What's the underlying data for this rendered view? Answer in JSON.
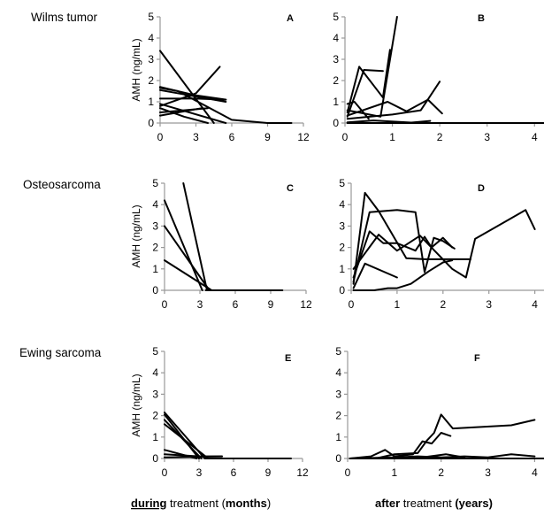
{
  "rows": [
    {
      "title": "Wilms tumor",
      "ylabel": "AMH (ng/mL)"
    },
    {
      "title": "Osteosarcoma",
      "ylabel": "AMH (ng/mL)"
    },
    {
      "title": "Ewing sarcoma",
      "ylabel": "AMH (ng/mL)"
    }
  ],
  "xlabels": {
    "during": {
      "underlined": "during",
      "plain1": " treatment (",
      "bold": "months",
      "plain2": ")"
    },
    "after": {
      "bold1": "after",
      "plain": " treatment ",
      "bold2": "(years)"
    }
  },
  "chart_data": [
    {
      "panel": "A",
      "type": "line",
      "xlim": [
        0,
        12
      ],
      "ylim": [
        0,
        5
      ],
      "xticks": [
        0,
        3,
        6,
        9,
        12
      ],
      "yticks": [
        0,
        1,
        2,
        3,
        4,
        5
      ],
      "series": [
        {
          "x": [
            0,
            4.5
          ],
          "y": [
            3.4,
            0
          ]
        },
        {
          "x": [
            0,
            1.5,
            6,
            9,
            11
          ],
          "y": [
            1.65,
            1.5,
            0.15,
            0,
            0
          ]
        },
        {
          "x": [
            0,
            3,
            5.5
          ],
          "y": [
            1.7,
            1.3,
            1.1
          ]
        },
        {
          "x": [
            0,
            5.5
          ],
          "y": [
            1.55,
            1.0
          ]
        },
        {
          "x": [
            0,
            3,
            5.5
          ],
          "y": [
            1.15,
            1.15,
            1.1
          ]
        },
        {
          "x": [
            0,
            5.5
          ],
          "y": [
            0.9,
            0
          ]
        },
        {
          "x": [
            0,
            3.5
          ],
          "y": [
            0.35,
            0.7
          ]
        },
        {
          "x": [
            0,
            2,
            4
          ],
          "y": [
            0.7,
            0.3,
            0
          ]
        },
        {
          "x": [
            0,
            3,
            5
          ],
          "y": [
            0.8,
            1.4,
            2.65
          ]
        },
        {
          "x": [
            0,
            4
          ],
          "y": [
            0.5,
            0.7
          ]
        }
      ]
    },
    {
      "panel": "B",
      "type": "line",
      "xlim": [
        0,
        4.2
      ],
      "ylim": [
        0,
        5
      ],
      "xticks": [
        0,
        1,
        2,
        3,
        4
      ],
      "yticks": [
        0,
        1,
        2,
        3,
        4,
        5
      ],
      "series": [
        {
          "x": [
            0.05,
            0.4,
            0.8
          ],
          "y": [
            0.3,
            2.5,
            2.45
          ]
        },
        {
          "x": [
            0.05,
            0.3,
            0.8,
            0.95
          ],
          "y": [
            0.5,
            2.65,
            1.2,
            3.45
          ]
        },
        {
          "x": [
            0.05,
            0.75,
            1.1
          ],
          "y": [
            0.6,
            0.3,
            5.0
          ]
        },
        {
          "x": [
            0.05,
            0.9,
            1.3,
            1.75,
            2.05
          ],
          "y": [
            0.35,
            1.0,
            0.55,
            1.1,
            0.45
          ]
        },
        {
          "x": [
            0.05,
            1.0,
            1.6,
            2.0
          ],
          "y": [
            0.2,
            0.4,
            0.6,
            1.95
          ]
        },
        {
          "x": [
            0.05,
            0.2,
            0.5
          ],
          "y": [
            0.9,
            1.0,
            0.2
          ]
        },
        {
          "x": [
            0.05,
            0.6,
            1.4,
            1.8
          ],
          "y": [
            0.03,
            0.12,
            0.02,
            0.1
          ]
        },
        {
          "x": [
            0.05,
            4.2
          ],
          "y": [
            0,
            0
          ]
        }
      ]
    },
    {
      "panel": "C",
      "type": "line",
      "xlim": [
        0,
        12
      ],
      "ylim": [
        0,
        5
      ],
      "xticks": [
        0,
        3,
        6,
        9,
        12
      ],
      "yticks": [
        0,
        1,
        2,
        3,
        4,
        5
      ],
      "series": [
        {
          "x": [
            1.6,
            3.6
          ],
          "y": [
            5.0,
            0
          ]
        },
        {
          "x": [
            0,
            3.2
          ],
          "y": [
            4.2,
            0
          ]
        },
        {
          "x": [
            0,
            3.8
          ],
          "y": [
            3.0,
            0
          ]
        },
        {
          "x": [
            0,
            4.0
          ],
          "y": [
            1.4,
            0
          ]
        },
        {
          "x": [
            3.5,
            10
          ],
          "y": [
            0,
            0
          ]
        }
      ]
    },
    {
      "panel": "D",
      "type": "line",
      "xlim": [
        0,
        4.2
      ],
      "ylim": [
        0,
        5
      ],
      "xticks": [
        0,
        1,
        2,
        3,
        4
      ],
      "yticks": [
        0,
        1,
        2,
        3,
        4,
        5
      ],
      "series": [
        {
          "x": [
            0.05,
            0.3,
            0.6,
            1.2,
            1.6,
            2.6
          ],
          "y": [
            0.3,
            4.55,
            3.7,
            1.5,
            1.45,
            1.45
          ]
        },
        {
          "x": [
            0.05,
            0.4,
            1.0,
            1.4,
            1.6,
            1.8,
            2.0,
            2.25
          ],
          "y": [
            0.4,
            3.65,
            3.75,
            3.65,
            0.85,
            2.45,
            2.3,
            1.95
          ]
        },
        {
          "x": [
            0.05,
            0.4,
            0.7,
            1.0,
            1.4,
            1.6,
            1.75,
            2.0,
            2.2
          ],
          "y": [
            0.6,
            2.75,
            2.2,
            2.2,
            1.85,
            2.5,
            2.0,
            2.45,
            2.0
          ]
        },
        {
          "x": [
            0.05,
            0.6,
            1.0,
            1.5,
            2.2,
            2.5,
            2.7,
            3.8,
            4.0
          ],
          "y": [
            1.0,
            2.6,
            1.85,
            2.55,
            1.0,
            0.6,
            2.4,
            3.75,
            2.85
          ]
        },
        {
          "x": [
            0.05,
            0.3,
            1.0
          ],
          "y": [
            0.1,
            1.25,
            0.6
          ]
        },
        {
          "x": [
            0.05,
            0.5,
            0.8,
            1.0,
            1.3,
            1.7,
            2.0,
            2.2
          ],
          "y": [
            0,
            0,
            0.1,
            0.1,
            0.3,
            0.9,
            1.3,
            1.4
          ]
        }
      ]
    },
    {
      "panel": "E",
      "type": "line",
      "xlim": [
        0,
        12
      ],
      "ylim": [
        0,
        5
      ],
      "xticks": [
        0,
        3,
        6,
        9,
        12
      ],
      "yticks": [
        0,
        1,
        2,
        3,
        4,
        5
      ],
      "series": [
        {
          "x": [
            0,
            3.5
          ],
          "y": [
            2.15,
            0
          ]
        },
        {
          "x": [
            0,
            3.0
          ],
          "y": [
            2.05,
            0
          ]
        },
        {
          "x": [
            0,
            3.2
          ],
          "y": [
            1.8,
            0
          ]
        },
        {
          "x": [
            0,
            3.8
          ],
          "y": [
            1.6,
            0
          ]
        },
        {
          "x": [
            0,
            2.8
          ],
          "y": [
            0.4,
            0
          ]
        },
        {
          "x": [
            0,
            3.0,
            5.0
          ],
          "y": [
            0.2,
            0.1,
            0.1
          ]
        },
        {
          "x": [
            0,
            5
          ],
          "y": [
            0.05,
            0.1
          ]
        },
        {
          "x": [
            3.5,
            11
          ],
          "y": [
            0,
            0
          ]
        }
      ]
    },
    {
      "panel": "F",
      "type": "line",
      "xlim": [
        0,
        4.2
      ],
      "ylim": [
        0,
        5
      ],
      "xticks": [
        0,
        1,
        2,
        3,
        4
      ],
      "yticks": [
        0,
        1,
        2,
        3,
        4,
        5
      ],
      "series": [
        {
          "x": [
            0.05,
            0.6,
            1.0,
            1.5,
            1.7,
            1.85,
            2.0,
            2.25,
            3.5,
            4.0
          ],
          "y": [
            0,
            0,
            0.2,
            0.25,
            0.85,
            1.2,
            2.05,
            1.4,
            1.55,
            1.8
          ]
        },
        {
          "x": [
            0.05,
            0.5,
            0.8,
            1.0,
            1.4,
            1.6,
            1.8,
            2.0,
            2.2
          ],
          "y": [
            0,
            0.1,
            0.4,
            0.1,
            0.2,
            0.8,
            0.7,
            1.2,
            1.05
          ]
        },
        {
          "x": [
            0.05,
            1.0,
            1.5,
            2.0,
            2.5,
            3.0,
            3.5,
            4.0
          ],
          "y": [
            0,
            0.05,
            0.1,
            0.05,
            0.1,
            0.05,
            0.2,
            0.1
          ]
        },
        {
          "x": [
            0.05,
            1.6,
            2.1,
            2.5
          ],
          "y": [
            0,
            0.05,
            0.2,
            0.05
          ]
        },
        {
          "x": [
            0.05,
            4.2
          ],
          "y": [
            0,
            0
          ]
        }
      ]
    }
  ]
}
